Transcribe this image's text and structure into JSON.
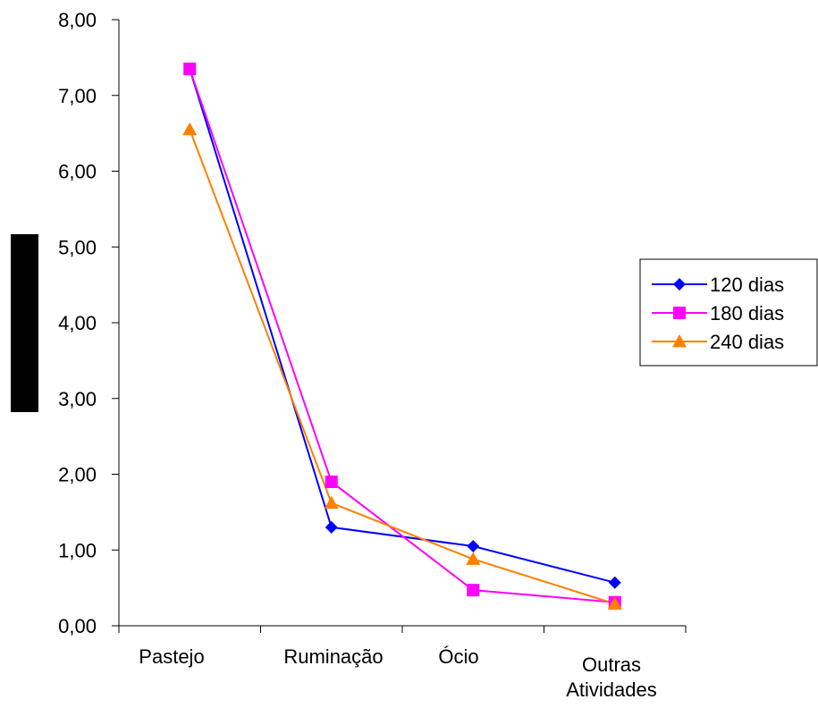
{
  "chart_data": {
    "type": "line",
    "categories": [
      [
        "Pastejo"
      ],
      [
        "Ruminação"
      ],
      [
        "Ócio"
      ],
      [
        "Outras",
        "Atividades"
      ]
    ],
    "ylim": [
      0,
      8
    ],
    "yticks": [
      "0,00",
      "1,00",
      "2,00",
      "3,00",
      "4,00",
      "5,00",
      "6,00",
      "7,00",
      "8,00"
    ],
    "ytick_values": [
      0,
      1,
      2,
      3,
      4,
      5,
      6,
      7,
      8
    ],
    "ylabel": "",
    "xlabel": "",
    "title": "",
    "grid": false,
    "legend_position": "right",
    "series": [
      {
        "name": "120 dias",
        "values": [
          7.35,
          1.3,
          1.05,
          0.57
        ],
        "color": "#0000ff",
        "marker": "diamond"
      },
      {
        "name": "180 dias",
        "values": [
          7.35,
          1.9,
          0.47,
          0.31
        ],
        "color": "#ff00ff",
        "marker": "square"
      },
      {
        "name": "240 dias",
        "values": [
          6.55,
          1.62,
          0.88,
          0.29
        ],
        "color": "#ff7f00",
        "marker": "triangle"
      }
    ]
  }
}
